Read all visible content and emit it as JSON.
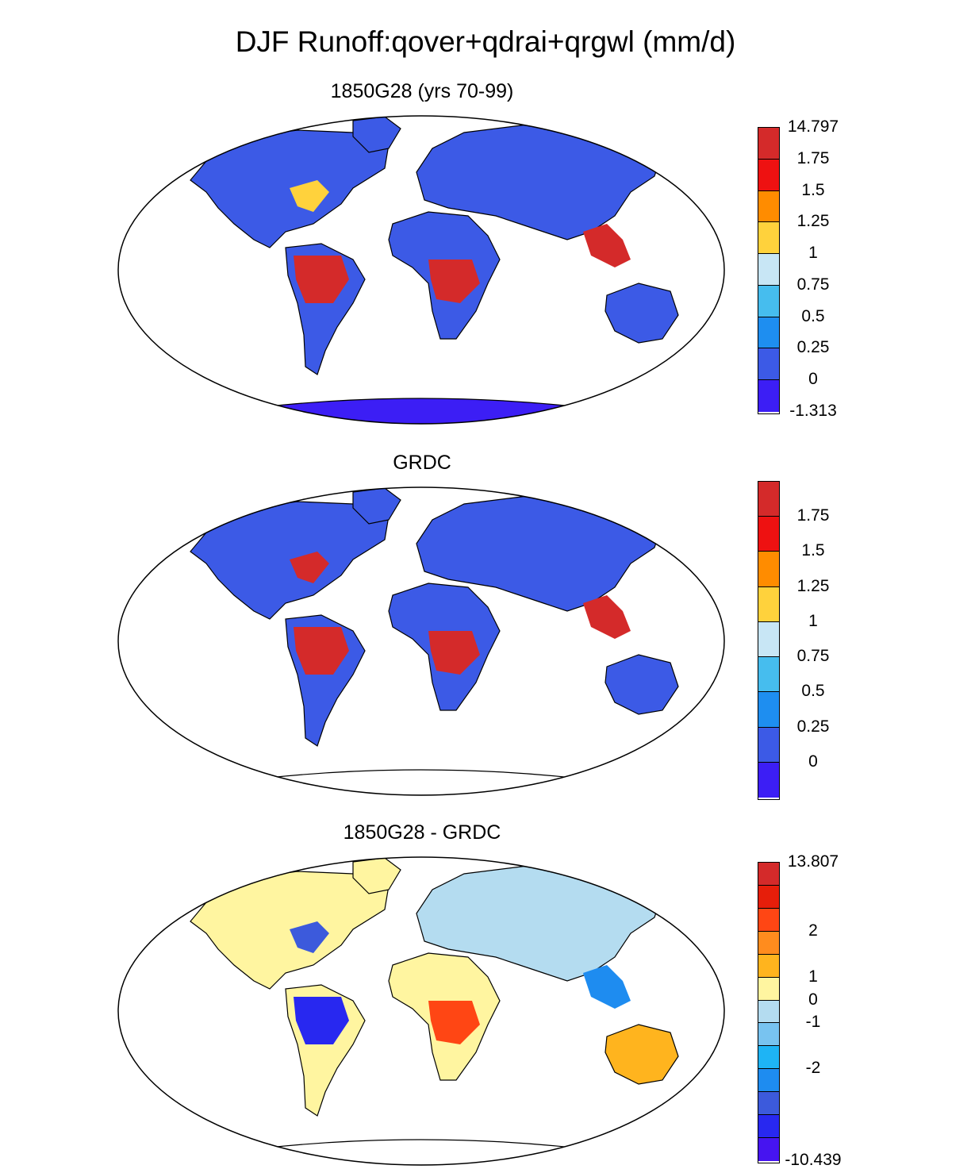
{
  "title": "DJF Runoff:qover+qdrai+qrgwl (mm/d)",
  "panels": [
    {
      "title": "1850G28 (yrs 70-99)",
      "colors": [
        "#d42a2a",
        "#ee1111",
        "#ff8c00",
        "#ffd23c",
        "#c8e6f5",
        "#46bdee",
        "#1e8ef0",
        "#3c5ae6",
        "#3c1ef5"
      ],
      "labels": [
        "14.797",
        "1.75",
        "1.5",
        "1.25",
        "1",
        "0.75",
        "0.5",
        "0.25",
        "0",
        "-1.313"
      ],
      "label_mode": "edges",
      "regions": {
        "north_america": "#3c5ae6",
        "south_america": "#3c5ae6",
        "africa": "#3c5ae6",
        "eurasia": "#3c5ae6",
        "australia": "#3c5ae6",
        "antarctica": "#3c1ef5",
        "amazon": "#d42a2a",
        "congo": "#d42a2a",
        "se_asia": "#d42a2a",
        "us_east": "#ffd23c"
      }
    },
    {
      "title": "GRDC",
      "colors": [
        "#d42a2a",
        "#ee1111",
        "#ff8c00",
        "#ffd23c",
        "#c8e6f5",
        "#46bdee",
        "#1e8ef0",
        "#3c5ae6",
        "#3c1ef5"
      ],
      "labels": [
        "1.75",
        "1.5",
        "1.25",
        "1",
        "0.75",
        "0.5",
        "0.25",
        "0"
      ],
      "label_mode": "inner",
      "regions": {
        "north_america": "#3c5ae6",
        "south_america": "#3c5ae6",
        "africa": "#3c5ae6",
        "eurasia": "#3c5ae6",
        "australia": "#3c5ae6",
        "antarctica": "#ffffff",
        "amazon": "#d42a2a",
        "congo": "#d42a2a",
        "se_asia": "#d42a2a",
        "us_east": "#d42a2a"
      }
    },
    {
      "title": "1850G28 - GRDC",
      "colors": [
        "#d42a2a",
        "#e61e0a",
        "#ff4614",
        "#ff8c1e",
        "#ffb41e",
        "#fff5a0",
        "#b4dcf0",
        "#78c3f0",
        "#1eb4f5",
        "#1e8cf0",
        "#3c5adc",
        "#2828f0",
        "#4614f0"
      ],
      "labels": [
        "13.807",
        "2",
        "1",
        "0",
        "-1",
        "-2",
        "-10.439"
      ],
      "label_mode": "custom",
      "regions": {
        "north_america": "#fff5a0",
        "south_america": "#fff5a0",
        "africa": "#fff5a0",
        "eurasia": "#b4dcf0",
        "australia": "#ffb41e",
        "antarctica": "#ffffff",
        "amazon": "#2828f0",
        "congo": "#ff4614",
        "se_asia": "#1e8cf0",
        "us_east": "#3c5adc"
      }
    }
  ]
}
